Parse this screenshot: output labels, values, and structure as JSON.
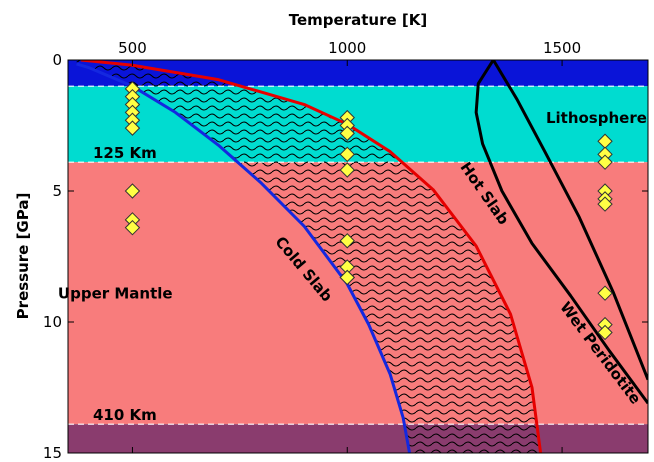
{
  "chart_data": {
    "type": "scatter",
    "title": "",
    "xlabel": "Temperature [K]",
    "ylabel": "Pressure [GPa]",
    "xlim": [
      350,
      1700
    ],
    "ylim": [
      15,
      0
    ],
    "x_axis_position": "top",
    "y_inverted": true,
    "grid": false,
    "legend": "none",
    "xticks": [
      500,
      1000,
      1500
    ],
    "xtick_labels": [
      "500",
      "1000",
      "1500"
    ],
    "yticks": [
      0,
      5,
      10,
      15
    ],
    "ytick_labels": [
      "0",
      "5",
      "10",
      "15"
    ],
    "colors": {
      "ocean": "#0a14d8",
      "lithosphere": "#00dcd0",
      "upper_mantle": "#f87c7c",
      "transition_zone": "#8a3c6e",
      "hot_slab": "#e60000",
      "cold_slab": "#1428e0",
      "wet_peridotite": "#000000",
      "marker_fill": "#ffff44",
      "marker_edge": "#333333"
    },
    "layers": [
      {
        "name": "ocean",
        "p_top": 0,
        "p_bottom": 1.0
      },
      {
        "name": "lithosphere",
        "p_top": 1.0,
        "p_bottom": 3.9
      },
      {
        "name": "upper_mantle",
        "p_top": 3.9,
        "p_bottom": 13.9
      },
      {
        "name": "transition_zone",
        "p_top": 13.9,
        "p_bottom": 15
      }
    ],
    "boundaries": [
      {
        "label": "125 Km",
        "pressure": 3.9
      },
      {
        "label": "410 Km",
        "pressure": 13.9
      },
      {
        "label": "",
        "pressure": 1.0
      }
    ],
    "region_labels": [
      {
        "text": "Lithosphere",
        "T": 1580,
        "P": 2.4
      },
      {
        "text": "Upper Mantle",
        "T": 460,
        "P": 9.1
      }
    ],
    "series": [
      {
        "name": "Hot Slab",
        "kind": "line",
        "color": "#e60000",
        "x": [
          380,
          500,
          700,
          900,
          1000,
          1100,
          1200,
          1300,
          1380,
          1430,
          1450
        ],
        "y": [
          0,
          0.2,
          0.75,
          1.7,
          2.45,
          3.5,
          4.95,
          7.1,
          9.7,
          12.5,
          15
        ]
      },
      {
        "name": "Cold Slab",
        "kind": "line",
        "color": "#1428e0",
        "x": [
          370,
          400,
          500,
          600,
          700,
          800,
          900,
          1000,
          1050,
          1100,
          1130,
          1145
        ],
        "y": [
          0.15,
          0.3,
          1.0,
          2.0,
          3.25,
          4.7,
          6.35,
          8.55,
          10.1,
          12.0,
          13.65,
          15
        ]
      },
      {
        "name": "Wet Peridotite",
        "kind": "line",
        "color": "#000000",
        "x": [
          1340,
          1305,
          1300,
          1315,
          1360,
          1430,
          1520,
          1610,
          1700
        ],
        "y": [
          0,
          0.9,
          2.0,
          3.2,
          5.0,
          7.0,
          9.0,
          11.1,
          13.1
        ]
      },
      {
        "name": "",
        "kind": "line",
        "color": "#000000",
        "x": [
          1340,
          1395,
          1460,
          1540,
          1620,
          1700
        ],
        "y": [
          0,
          1.5,
          3.5,
          6.0,
          8.9,
          12.2
        ]
      },
      {
        "name": "",
        "kind": "scatter",
        "marker": "diamond",
        "x": [
          500,
          500,
          500,
          500,
          500,
          500,
          500,
          500,
          500,
          1000,
          1000,
          1000,
          1000,
          1000,
          1000,
          1000,
          1000,
          1000,
          1600,
          1600,
          1600,
          1600,
          1600,
          1600,
          1600,
          1600,
          1600
        ],
        "y": [
          1.1,
          1.4,
          1.7,
          2.0,
          2.3,
          2.6,
          5.0,
          6.1,
          6.4,
          2.2,
          2.5,
          2.8,
          3.6,
          4.2,
          6.9,
          7.9,
          8.3,
          8.3,
          3.1,
          3.6,
          3.9,
          5.0,
          5.3,
          5.5,
          8.9,
          10.1,
          10.4
        ]
      }
    ],
    "annotations": [
      {
        "text": "Hot Slab",
        "T": 1310,
        "P": 5.2,
        "rotation": 55
      },
      {
        "text": "Cold Slab",
        "T": 890,
        "P": 8.1,
        "rotation": 50
      },
      {
        "text": "Wet Peridotite",
        "T": 1580,
        "P": 11.3,
        "rotation": 53
      }
    ],
    "hatched_region": {
      "between": [
        "Cold Slab",
        "Hot Slab"
      ],
      "pattern": "wavy"
    }
  }
}
